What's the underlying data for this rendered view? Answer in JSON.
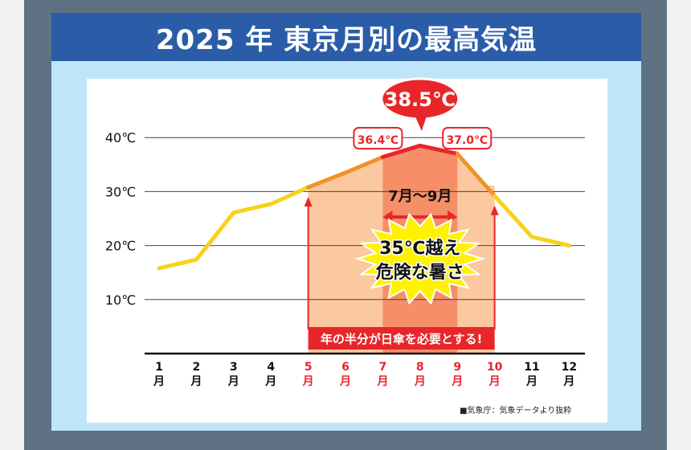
{
  "title": "2025 年 東京月別の最高気温",
  "source": "■気象庁：気象データより抜粋",
  "colors": {
    "frame": "#5e7284",
    "title_bar": "#2a5ca8",
    "panel": "#bfe6f8",
    "line_normal": "#f7d21c",
    "line_hot": "#f0922a",
    "line_peak": "#e8262a",
    "red": "#e8262a",
    "band_hot": "#fbc8a0",
    "band_peak": "#f68e68"
  },
  "chart_data": {
    "type": "line",
    "title": "2025 年 東京月別の最高気温",
    "categories": [
      "1月",
      "2月",
      "3月",
      "4月",
      "5月",
      "6月",
      "7月",
      "8月",
      "9月",
      "10月",
      "11月",
      "12月"
    ],
    "category_labels": [
      {
        "num": "1",
        "unit": "月"
      },
      {
        "num": "2",
        "unit": "月"
      },
      {
        "num": "3",
        "unit": "月"
      },
      {
        "num": "4",
        "unit": "月"
      },
      {
        "num": "5",
        "unit": "月"
      },
      {
        "num": "6",
        "unit": "月"
      },
      {
        "num": "7",
        "unit": "月"
      },
      {
        "num": "8",
        "unit": "月"
      },
      {
        "num": "9",
        "unit": "月"
      },
      {
        "num": "10",
        "unit": "月"
      },
      {
        "num": "11",
        "unit": "月"
      },
      {
        "num": "12",
        "unit": "月"
      }
    ],
    "red_months": [
      5,
      6,
      7,
      8,
      9,
      10
    ],
    "series": [
      {
        "values": [
          15.8,
          17.4,
          26.1,
          27.7,
          30.8,
          33.5,
          36.4,
          38.5,
          37.0,
          29.2,
          21.6,
          20.0
        ]
      }
    ],
    "y_ticks": [
      {
        "value": 10,
        "label": "10℃"
      },
      {
        "value": 20,
        "label": "20℃"
      },
      {
        "value": 30,
        "label": "30℃"
      },
      {
        "value": 40,
        "label": "40℃"
      }
    ],
    "ylim": [
      0,
      45
    ],
    "grid": true,
    "annotations": {
      "peak": {
        "month_index": 7,
        "label": "38.5℃"
      },
      "jul": {
        "month_index": 6,
        "label": "36.4℃"
      },
      "sep": {
        "month_index": 8,
        "label": "37.0℃"
      },
      "range_label": "7月～9月",
      "burst_line1": "35℃越え",
      "burst_line2": "危険な暑さ",
      "banner": "年の半分が日傘を必要とする!"
    }
  }
}
